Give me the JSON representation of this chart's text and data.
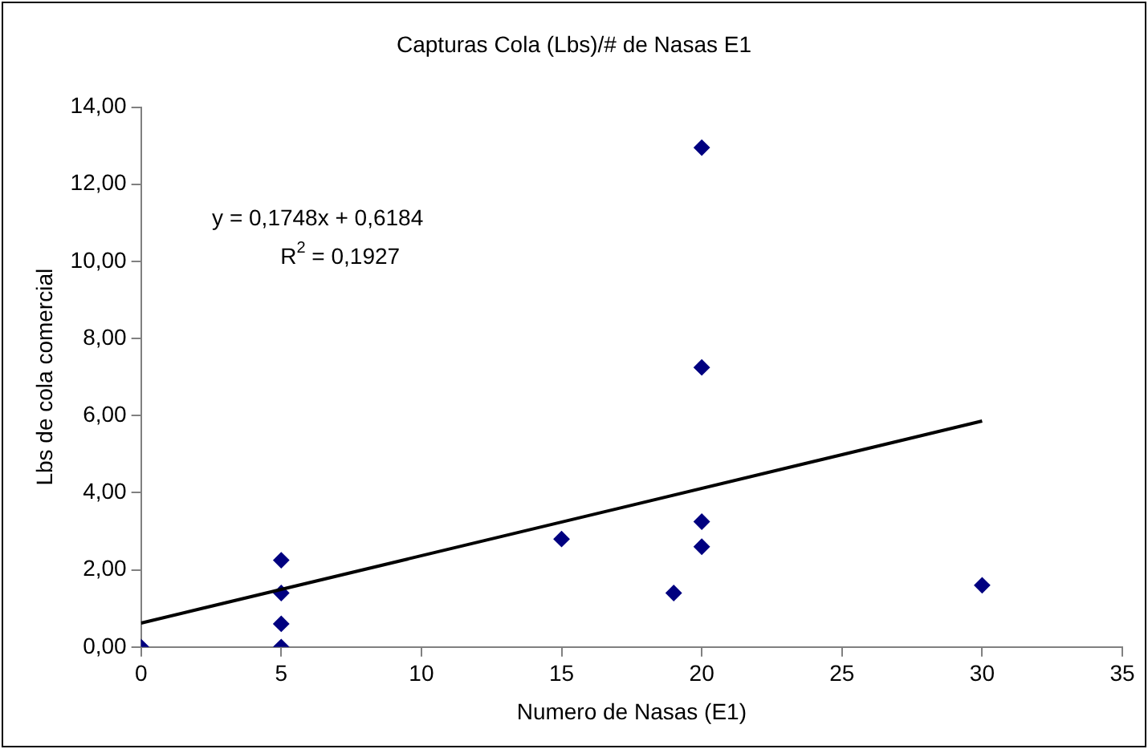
{
  "chart_data": {
    "type": "scatter",
    "title": "Capturas Cola (Lbs)/# de Nasas E1",
    "xlabel": "Numero de Nasas (E1)",
    "ylabel": "Lbs de cola comercial",
    "series": [
      {
        "type": "scatter",
        "marker": "diamond",
        "color": "#000080",
        "x": [
          0,
          5,
          5,
          5,
          5,
          15,
          19,
          20,
          20,
          20,
          20,
          30
        ],
        "values": [
          0,
          2.25,
          1.4,
          0.6,
          0,
          2.8,
          1.4,
          12.95,
          7.25,
          3.25,
          2.6,
          1.6
        ]
      },
      {
        "type": "line",
        "marker": "none",
        "color": "#000000",
        "x": [
          0,
          30
        ],
        "values": [
          0.62,
          5.86
        ]
      }
    ],
    "annotations": [
      "y = 0,1748x + 0,6184",
      "R$^{2}$ = 0,1927"
    ],
    "xlim": [
      0,
      35
    ],
    "xticks": [
      0,
      5,
      10,
      15,
      20,
      25,
      30,
      35
    ],
    "ylim": [
      0,
      14
    ],
    "yticks": [
      {
        "value": 0,
        "label": "0,00"
      },
      {
        "value": 2,
        "label": "2,00"
      },
      {
        "value": 4,
        "label": "4,00"
      },
      {
        "value": 6,
        "label": "6,00"
      },
      {
        "value": 8,
        "label": "8,00"
      },
      {
        "value": 10,
        "label": "10,00"
      },
      {
        "value": 12,
        "label": "12,00"
      },
      {
        "value": 14,
        "label": "14,00"
      }
    ],
    "grid": false,
    "legend": false
  }
}
